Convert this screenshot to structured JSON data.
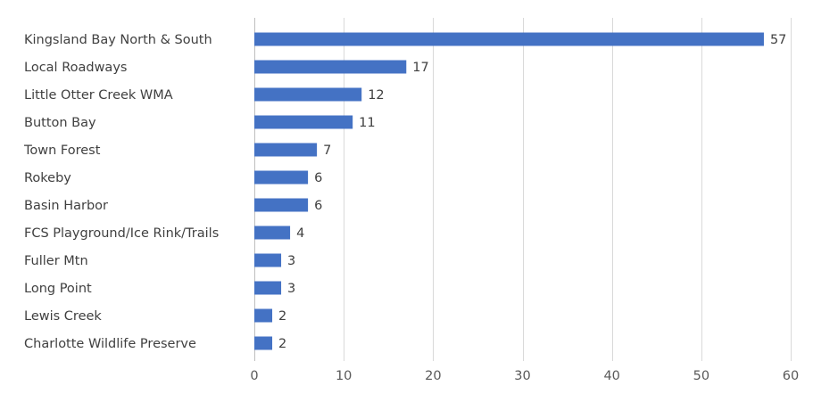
{
  "chart_data": {
    "type": "bar",
    "orientation": "horizontal",
    "title": "",
    "xlabel": "",
    "ylabel": "",
    "categories": [
      "Kingsland Bay North & South",
      "Local Roadways",
      "Little Otter Creek WMA",
      "Button Bay",
      "Town Forest",
      "Rokeby",
      "Basin Harbor",
      "FCS Playground/Ice Rink/Trails",
      "Fuller Mtn",
      "Long Point",
      "Lewis Creek",
      "Charlotte Wildlife Preserve"
    ],
    "values": [
      57,
      17,
      12,
      11,
      7,
      6,
      6,
      4,
      3,
      3,
      2,
      2
    ],
    "xlim": [
      0,
      60
    ],
    "xticks": [
      0,
      10,
      20,
      30,
      40,
      50,
      60
    ],
    "grid": true,
    "legend": "none",
    "data_labels": true,
    "colors": {
      "bar": "#4472c4",
      "grid": "#d9d9d9",
      "text": "#404040"
    }
  }
}
